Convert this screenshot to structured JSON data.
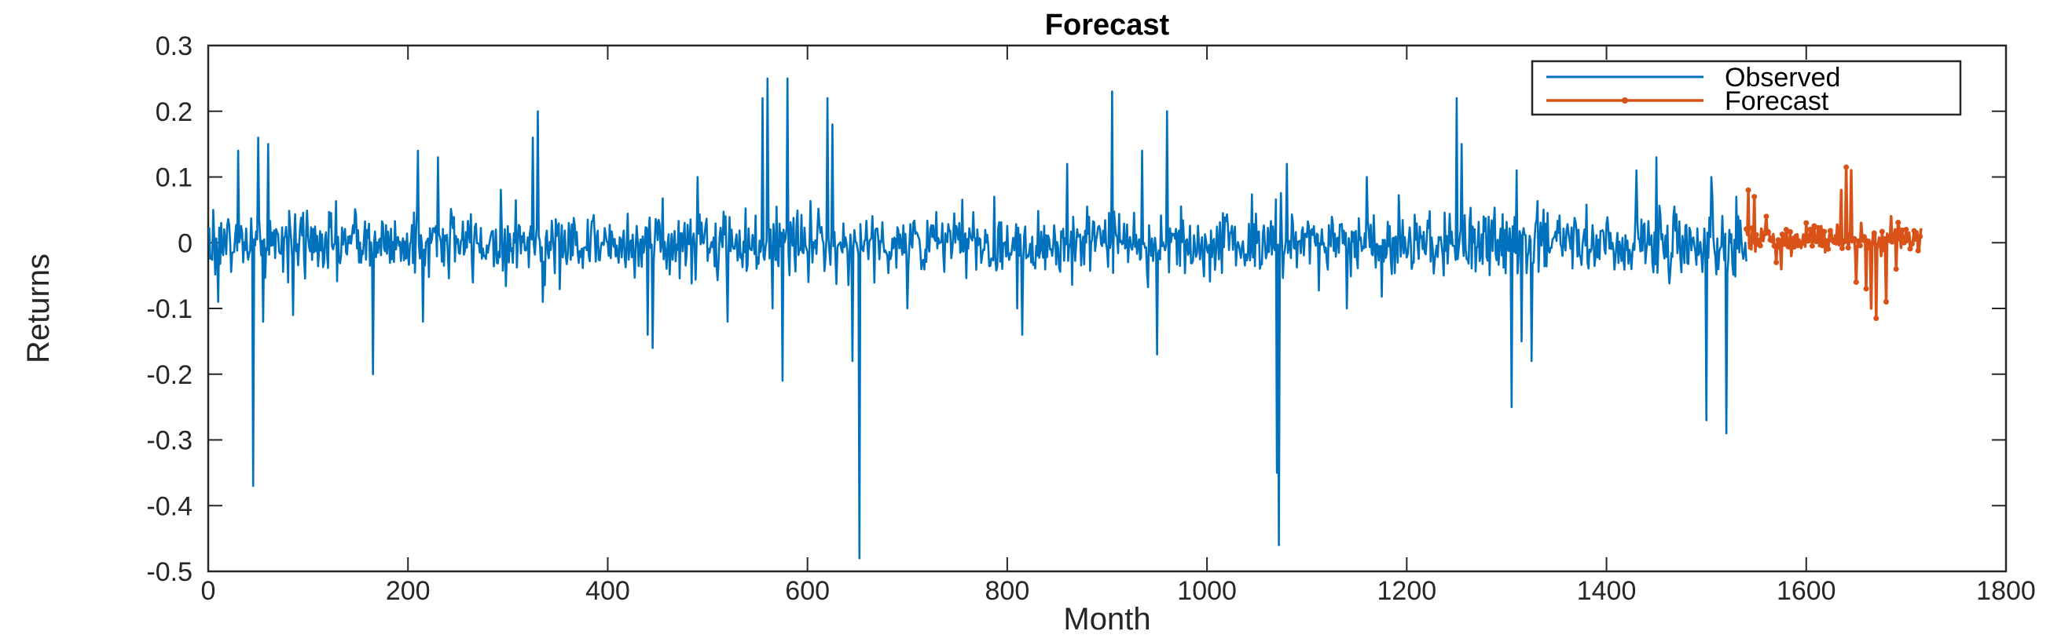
{
  "chart_data": {
    "type": "line",
    "title": "Forecast",
    "xlabel": "Month",
    "ylabel": "Returns",
    "xlim": [
      0,
      1800
    ],
    "ylim": [
      -0.5,
      0.3
    ],
    "xticks": [
      0,
      200,
      400,
      600,
      800,
      1000,
      1200,
      1400,
      1600,
      1800
    ],
    "yticks": [
      -0.5,
      -0.4,
      -0.3,
      -0.2,
      -0.1,
      0,
      0.1,
      0.2,
      0.3
    ],
    "xtick_labels": [
      "0",
      "200",
      "400",
      "600",
      "800",
      "1000",
      "1200",
      "1400",
      "1600",
      "1800"
    ],
    "ytick_labels": [
      "-0.5",
      "-0.4",
      "-0.3",
      "-0.2",
      "-0.1",
      "0",
      "0.1",
      "0.2",
      "0.3"
    ],
    "grid": false,
    "legend_position": "top-right",
    "series": [
      {
        "name": "Observed",
        "color": "#0072BD",
        "x_start": 1,
        "x_end": 1540,
        "noise_sd": 0.025,
        "spikes": [
          {
            "x": 5,
            "y": 0.05
          },
          {
            "x": 10,
            "y": -0.09
          },
          {
            "x": 30,
            "y": 0.14
          },
          {
            "x": 45,
            "y": -0.37
          },
          {
            "x": 50,
            "y": 0.16
          },
          {
            "x": 55,
            "y": -0.12
          },
          {
            "x": 60,
            "y": 0.15
          },
          {
            "x": 85,
            "y": -0.11
          },
          {
            "x": 165,
            "y": -0.2
          },
          {
            "x": 210,
            "y": 0.14
          },
          {
            "x": 215,
            "y": -0.12
          },
          {
            "x": 230,
            "y": 0.13
          },
          {
            "x": 325,
            "y": 0.16
          },
          {
            "x": 330,
            "y": 0.2
          },
          {
            "x": 335,
            "y": -0.09
          },
          {
            "x": 440,
            "y": -0.14
          },
          {
            "x": 445,
            "y": -0.16
          },
          {
            "x": 490,
            "y": 0.1
          },
          {
            "x": 520,
            "y": -0.12
          },
          {
            "x": 555,
            "y": 0.22
          },
          {
            "x": 560,
            "y": 0.25
          },
          {
            "x": 565,
            "y": -0.1
          },
          {
            "x": 575,
            "y": -0.21
          },
          {
            "x": 580,
            "y": 0.25
          },
          {
            "x": 620,
            "y": 0.22
          },
          {
            "x": 625,
            "y": 0.18
          },
          {
            "x": 645,
            "y": -0.18
          },
          {
            "x": 652,
            "y": -0.48
          },
          {
            "x": 700,
            "y": -0.1
          },
          {
            "x": 810,
            "y": -0.1
          },
          {
            "x": 815,
            "y": -0.14
          },
          {
            "x": 860,
            "y": 0.12
          },
          {
            "x": 905,
            "y": 0.23
          },
          {
            "x": 935,
            "y": 0.14
          },
          {
            "x": 950,
            "y": -0.17
          },
          {
            "x": 960,
            "y": 0.2
          },
          {
            "x": 1070,
            "y": -0.35
          },
          {
            "x": 1072,
            "y": -0.46
          },
          {
            "x": 1080,
            "y": 0.12
          },
          {
            "x": 1140,
            "y": -0.1
          },
          {
            "x": 1160,
            "y": 0.1
          },
          {
            "x": 1250,
            "y": 0.22
          },
          {
            "x": 1255,
            "y": 0.15
          },
          {
            "x": 1305,
            "y": -0.25
          },
          {
            "x": 1310,
            "y": 0.11
          },
          {
            "x": 1315,
            "y": -0.15
          },
          {
            "x": 1325,
            "y": -0.18
          },
          {
            "x": 1430,
            "y": 0.11
          },
          {
            "x": 1450,
            "y": 0.13
          },
          {
            "x": 1500,
            "y": -0.27
          },
          {
            "x": 1505,
            "y": 0.1
          },
          {
            "x": 1520,
            "y": -0.29
          },
          {
            "x": 1530,
            "y": 0.07
          }
        ]
      },
      {
        "name": "Forecast",
        "color": "#D95319",
        "x_start": 1540,
        "x_end": 1715,
        "marker": "dot",
        "noise_sd": 0.01,
        "spikes": [
          {
            "x": 1542,
            "y": 0.08
          },
          {
            "x": 1545,
            "y": -0.01
          },
          {
            "x": 1548,
            "y": 0.07
          },
          {
            "x": 1560,
            "y": 0.04
          },
          {
            "x": 1570,
            "y": -0.03
          },
          {
            "x": 1575,
            "y": -0.04
          },
          {
            "x": 1580,
            "y": 0.02
          },
          {
            "x": 1585,
            "y": -0.02
          },
          {
            "x": 1590,
            "y": 0.01
          },
          {
            "x": 1600,
            "y": 0.03
          },
          {
            "x": 1615,
            "y": 0.025
          },
          {
            "x": 1625,
            "y": 0.02
          },
          {
            "x": 1635,
            "y": 0.08
          },
          {
            "x": 1640,
            "y": 0.115
          },
          {
            "x": 1645,
            "y": 0.11
          },
          {
            "x": 1650,
            "y": -0.06
          },
          {
            "x": 1655,
            "y": 0.03
          },
          {
            "x": 1660,
            "y": -0.07
          },
          {
            "x": 1665,
            "y": -0.1
          },
          {
            "x": 1670,
            "y": -0.115
          },
          {
            "x": 1675,
            "y": -0.02
          },
          {
            "x": 1680,
            "y": -0.09
          },
          {
            "x": 1685,
            "y": 0.04
          },
          {
            "x": 1690,
            "y": -0.04
          },
          {
            "x": 1700,
            "y": 0.02
          },
          {
            "x": 1710,
            "y": 0.01
          }
        ]
      }
    ]
  }
}
